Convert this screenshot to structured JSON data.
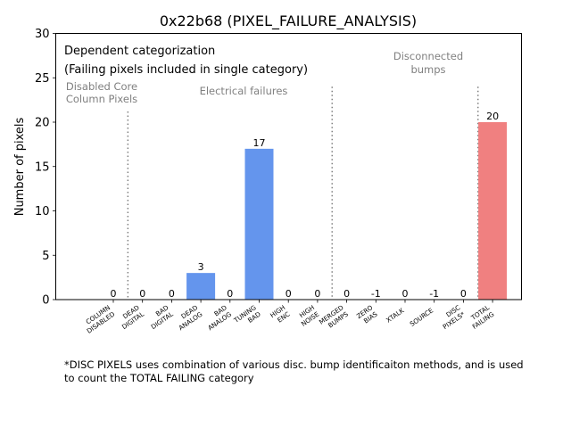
{
  "chart_data": {
    "type": "bar",
    "title": "0x22b68 (PIXEL_FAILURE_ANALYSIS)",
    "ylabel": "Number of pixels",
    "xlabel": "",
    "ylim": [
      0,
      30
    ],
    "yticks": [
      0,
      5,
      10,
      15,
      20,
      25,
      30
    ],
    "grid": false,
    "categories": [
      [
        "COLUMN",
        "DISABLED"
      ],
      [
        "DEAD",
        "DIGITAL"
      ],
      [
        "BAD",
        "DIGITAL"
      ],
      [
        "DEAD",
        "ANALOG"
      ],
      [
        "BAD",
        "ANALOG"
      ],
      [
        "TUNING",
        "BAD"
      ],
      [
        "HIGH",
        "ENC"
      ],
      [
        "HIGH",
        "NOISE"
      ],
      [
        "MERGED",
        "BUMPS"
      ],
      [
        "ZERO",
        "BIAS"
      ],
      [
        "XTALK"
      ],
      [
        "SOURCE"
      ],
      [
        "DISC",
        "PIXELS*"
      ],
      [
        "TOTAL",
        "FAILING"
      ]
    ],
    "values": [
      0,
      0,
      0,
      3,
      0,
      17,
      0,
      0,
      0,
      -1,
      0,
      -1,
      0,
      20
    ],
    "data_labels": [
      "0",
      "0",
      "0",
      "3",
      "0",
      "17",
      "0",
      "0",
      "0",
      "-1",
      "0",
      "-1",
      "0",
      "20"
    ],
    "bar_colors": {
      "electrical": "#6495ed",
      "total": "#f08080"
    },
    "separators_after_index": [
      0,
      7,
      12
    ],
    "text_box": [
      "Dependent categorization",
      "(Failing pixels included in single category)"
    ],
    "group_labels": [
      {
        "lines": [
          "Disabled Core",
          "Column Pixels"
        ]
      },
      {
        "lines": [
          "Electrical failures"
        ]
      },
      {
        "lines": [
          "Disconnected",
          "bumps"
        ]
      }
    ]
  },
  "footnote": [
    "*DISC PIXELS uses combination of various disc. bump identificaiton methods, and is used",
    "to count the TOTAL FAILING category"
  ]
}
